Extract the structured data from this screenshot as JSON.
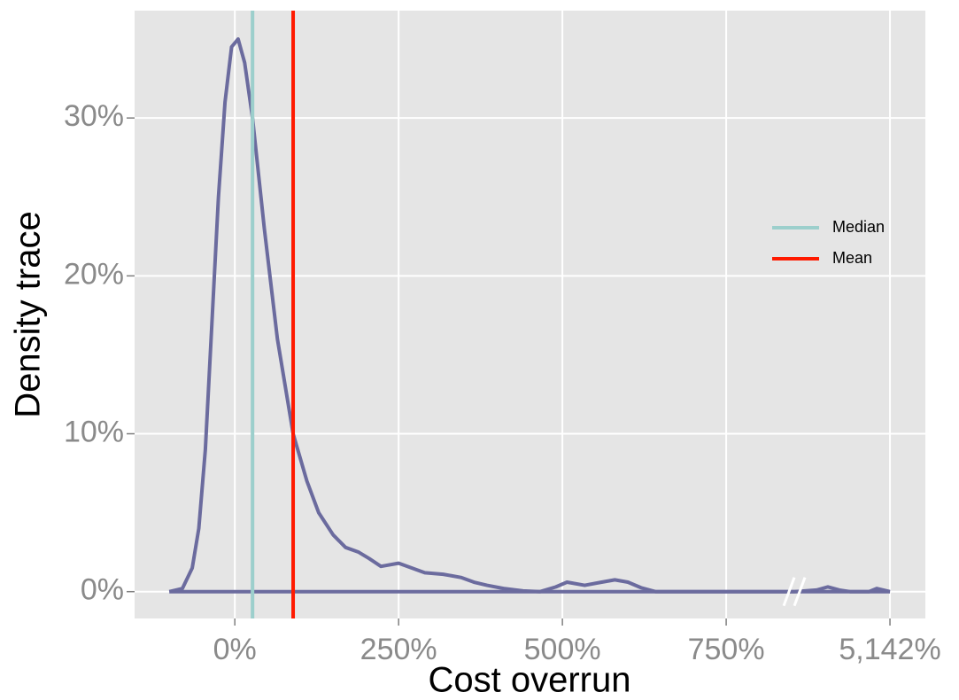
{
  "chart_data": {
    "type": "line",
    "xlabel": "Cost overrun",
    "ylabel": "Density trace",
    "x": [
      -100,
      -80,
      -65,
      -55,
      -45,
      -35,
      -25,
      -15,
      -5,
      5,
      15,
      27,
      45,
      65,
      89,
      110,
      128,
      150,
      169,
      189,
      205,
      223,
      250,
      270,
      290,
      318,
      345,
      365,
      385,
      410,
      440,
      466,
      490,
      507,
      534,
      560,
      580,
      600,
      620,
      642,
      854,
      4996,
      5030,
      5047,
      5065,
      5081,
      5110,
      5122,
      5142
    ],
    "series": [
      {
        "color": "#6b6b9e",
        "values": [
          0,
          0.2,
          1.5,
          4,
          9,
          17,
          25,
          31,
          34.5,
          35,
          33.5,
          30,
          23,
          16,
          10,
          7,
          5,
          3.6,
          2.8,
          2.5,
          2.1,
          1.6,
          1.8,
          1.5,
          1.2,
          1.1,
          0.9,
          0.6,
          0.4,
          0.2,
          0.05,
          0,
          0.3,
          0.6,
          0.4,
          0.6,
          0.75,
          0.6,
          0.25,
          0,
          0,
          0,
          0.1,
          0.3,
          0.1,
          0,
          0,
          0.2,
          0
        ]
      }
    ],
    "vlines": [
      {
        "name": "Median",
        "color": "#9ccfcc",
        "value": 27
      },
      {
        "name": "Mean",
        "color": "#ff1a00",
        "value": 89
      }
    ],
    "xlim": [
      -153,
      5196
    ],
    "xbreak": [
      854,
      4996
    ],
    "xticks": [
      {
        "value": 0,
        "label": "0%"
      },
      {
        "value": 250,
        "label": "250%"
      },
      {
        "value": 500,
        "label": "500%"
      },
      {
        "value": 750,
        "label": "750%"
      },
      {
        "value": 5142,
        "label": "5,142%"
      }
    ],
    "ylim": [
      -1.7,
      36.8
    ],
    "yticks": [
      {
        "value": 0,
        "label": "0%"
      },
      {
        "value": 10,
        "label": "10%"
      },
      {
        "value": 20,
        "label": "20%"
      },
      {
        "value": 30,
        "label": "30%"
      }
    ],
    "grid": true
  }
}
